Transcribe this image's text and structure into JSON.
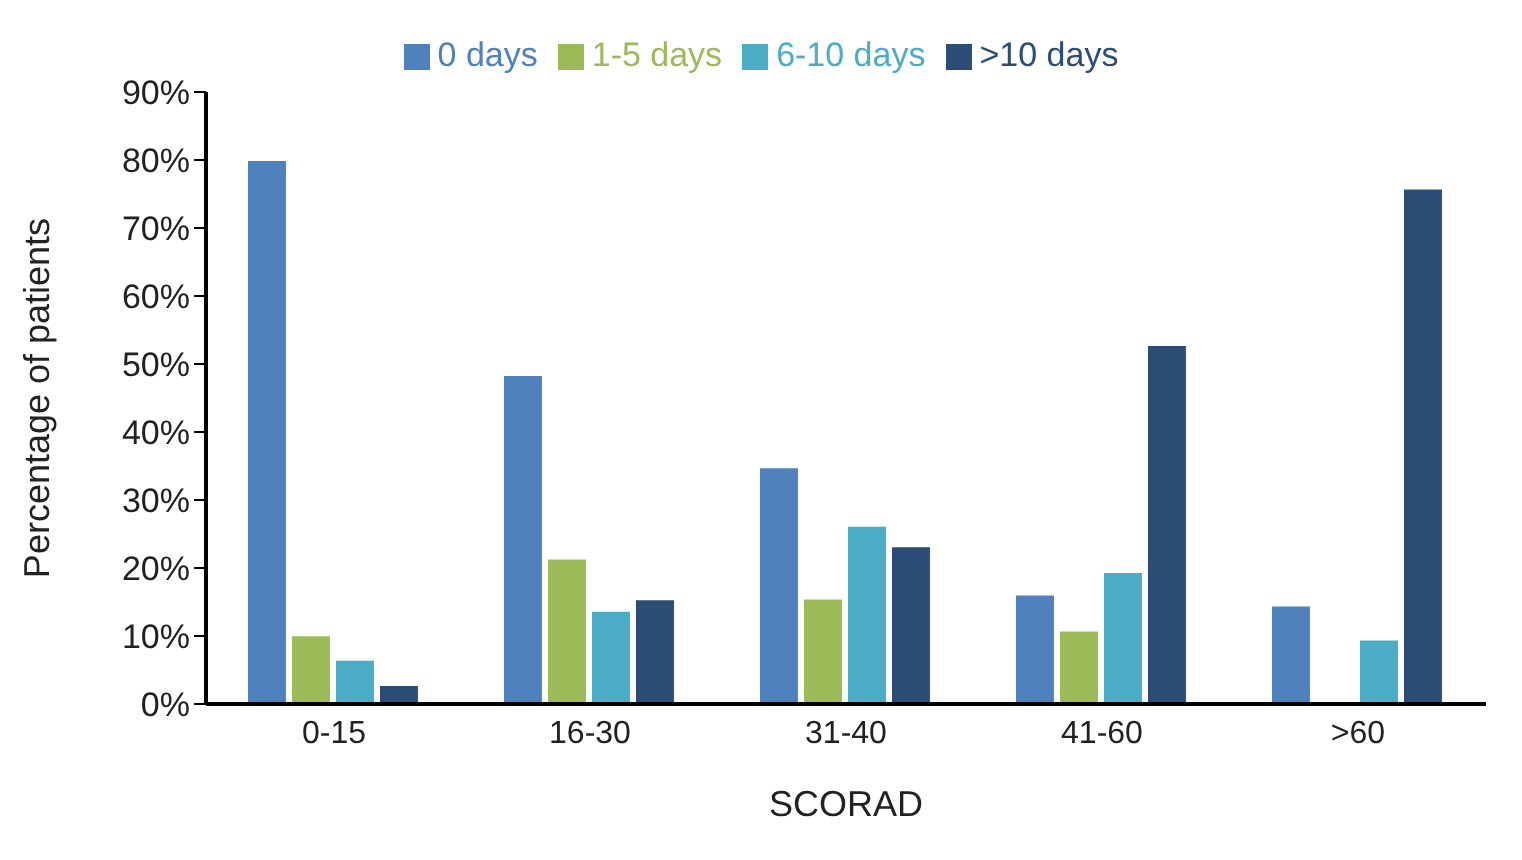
{
  "chart_data": {
    "type": "bar",
    "xlabel": "SCORAD",
    "ylabel": "Percentage of patients",
    "categories": [
      "0-15",
      "16-30",
      "31-40",
      "41-60",
      ">60"
    ],
    "series": [
      {
        "name": "0 days",
        "color": "#4f81bd",
        "values": [
          80,
          48.4,
          34.8,
          16.1,
          14.5
        ]
      },
      {
        "name": "1-5 days",
        "color": "#9bbb59",
        "values": [
          10.1,
          21.4,
          15.5,
          10.8,
          0
        ]
      },
      {
        "name": "6-10 days",
        "color": "#4bacc6",
        "values": [
          6.5,
          13.7,
          26.2,
          19.4,
          9.5
        ]
      },
      {
        "name": ">10 days",
        "color": "#2c4d75",
        "values": [
          2.8,
          15.4,
          23.2,
          52.8,
          75.8
        ]
      }
    ],
    "ylim": [
      0,
      90
    ],
    "yticks": [
      {
        "value": 0,
        "label": "0%"
      },
      {
        "value": 10,
        "label": "10%"
      },
      {
        "value": 20,
        "label": "20%"
      },
      {
        "value": 30,
        "label": "30%"
      },
      {
        "value": 40,
        "label": "40%"
      },
      {
        "value": 50,
        "label": "50%"
      },
      {
        "value": 60,
        "label": "60%"
      },
      {
        "value": 70,
        "label": "70%"
      },
      {
        "value": 80,
        "label": "80%"
      },
      {
        "value": 90,
        "label": "90%"
      }
    ],
    "grid": false,
    "legend": "top"
  }
}
